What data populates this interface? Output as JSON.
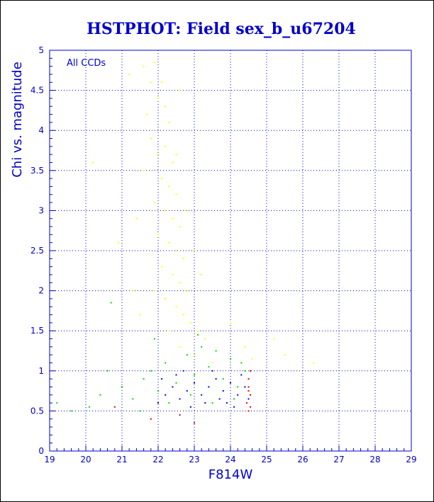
{
  "chart_data": {
    "type": "scatter",
    "title": "HSTPHOT: Field sex_b_u67204",
    "xlabel": "F814W",
    "ylabel": "Chi vs. magnitude",
    "annotation": "All CCDs",
    "xlim": [
      19,
      29
    ],
    "ylim": [
      0,
      5
    ],
    "xticks": [
      19,
      20,
      21,
      22,
      23,
      24,
      25,
      26,
      27,
      28,
      29
    ],
    "yticks": [
      0,
      0.5,
      1,
      1.5,
      2,
      2.5,
      3,
      3.5,
      4,
      4.5,
      5
    ],
    "ytick_labels": [
      "0",
      "0.5",
      "1",
      "1.5",
      "2",
      "2.5",
      "3",
      "3.5",
      "4",
      "4.5",
      "5"
    ],
    "grid": true,
    "colors": {
      "axis": "#0000cc",
      "title": "#0000cc",
      "series_yellow": "#ffff00",
      "series_green": "#00dd00",
      "series_blue": "#0000ff",
      "series_red": "#dd0000"
    },
    "series": [
      {
        "color": "#ffff00",
        "points": [
          [
            21.6,
            4.8
          ],
          [
            21.8,
            4.6
          ],
          [
            21.9,
            4.85
          ],
          [
            22.0,
            4.4
          ],
          [
            22.2,
            4.3
          ],
          [
            22.3,
            4.1
          ],
          [
            21.7,
            4.2
          ],
          [
            22.1,
            4.6
          ],
          [
            21.8,
            3.9
          ],
          [
            22.0,
            3.7
          ],
          [
            22.2,
            3.8
          ],
          [
            22.4,
            3.6
          ],
          [
            21.6,
            3.5
          ],
          [
            22.1,
            3.4
          ],
          [
            22.3,
            3.3
          ],
          [
            22.5,
            3.2
          ],
          [
            21.9,
            3.1
          ],
          [
            22.2,
            3.0
          ],
          [
            22.4,
            2.9
          ],
          [
            22.6,
            2.8
          ],
          [
            22.0,
            2.7
          ],
          [
            22.3,
            2.6
          ],
          [
            22.5,
            2.5
          ],
          [
            22.7,
            2.4
          ],
          [
            22.1,
            2.3
          ],
          [
            22.4,
            2.2
          ],
          [
            22.6,
            2.1
          ],
          [
            22.8,
            2.0
          ],
          [
            22.2,
            1.9
          ],
          [
            22.5,
            1.8
          ],
          [
            22.7,
            1.7
          ],
          [
            22.9,
            1.6
          ],
          [
            23.1,
            1.5
          ],
          [
            23.3,
            1.4
          ],
          [
            22.3,
            1.5
          ],
          [
            22.6,
            1.3
          ],
          [
            23.0,
            1.2
          ],
          [
            23.5,
            1.1
          ],
          [
            24.6,
            1.15
          ],
          [
            25.2,
            1.4
          ],
          [
            25.5,
            1.2
          ],
          [
            26.3,
            1.1
          ],
          [
            20.2,
            3.6
          ],
          [
            20.9,
            2.6
          ],
          [
            21.3,
            2.0
          ],
          [
            21.5,
            1.7
          ],
          [
            24.0,
            1.6
          ],
          [
            24.4,
            1.3
          ],
          [
            22.5,
            3.7
          ],
          [
            22.8,
            3.0
          ],
          [
            23.0,
            2.5
          ],
          [
            23.2,
            2.2
          ],
          [
            21.4,
            2.9
          ],
          [
            21.2,
            4.7
          ],
          [
            22.6,
            4.5
          ],
          [
            21.9,
            2.0
          ]
        ]
      },
      {
        "color": "#00dd00",
        "points": [
          [
            19.2,
            0.6
          ],
          [
            19.6,
            0.5
          ],
          [
            20.1,
            0.55
          ],
          [
            20.4,
            0.7
          ],
          [
            20.7,
            1.85
          ],
          [
            21.0,
            0.8
          ],
          [
            21.3,
            0.65
          ],
          [
            21.6,
            0.9
          ],
          [
            21.8,
            1.0
          ],
          [
            22.0,
            0.75
          ],
          [
            22.2,
            1.1
          ],
          [
            22.5,
            0.85
          ],
          [
            22.8,
            1.2
          ],
          [
            23.0,
            0.95
          ],
          [
            23.2,
            1.3
          ],
          [
            23.4,
            1.05
          ],
          [
            23.6,
            1.25
          ],
          [
            23.8,
            0.9
          ],
          [
            24.0,
            1.15
          ],
          [
            24.2,
            0.8
          ],
          [
            24.4,
            1.0
          ],
          [
            22.3,
            0.6
          ],
          [
            22.9,
            0.7
          ],
          [
            23.5,
            0.6
          ],
          [
            24.1,
            0.65
          ],
          [
            21.5,
            0.5
          ],
          [
            20.6,
            1.0
          ],
          [
            21.9,
            1.4
          ],
          [
            23.1,
            1.45
          ],
          [
            24.3,
            1.1
          ]
        ]
      },
      {
        "color": "#0000ff",
        "points": [
          [
            22.0,
            0.6
          ],
          [
            22.2,
            0.7
          ],
          [
            22.4,
            0.8
          ],
          [
            22.6,
            0.65
          ],
          [
            22.8,
            0.75
          ],
          [
            23.0,
            0.85
          ],
          [
            23.2,
            0.7
          ],
          [
            23.4,
            0.8
          ],
          [
            23.6,
            0.9
          ],
          [
            23.8,
            0.75
          ],
          [
            24.0,
            0.85
          ],
          [
            24.2,
            0.7
          ],
          [
            24.4,
            0.8
          ],
          [
            22.1,
            0.9
          ],
          [
            22.5,
            0.95
          ],
          [
            22.9,
            0.55
          ],
          [
            23.3,
            0.6
          ],
          [
            23.7,
            0.65
          ],
          [
            24.1,
            0.55
          ],
          [
            24.3,
            0.95
          ],
          [
            22.7,
            1.0
          ],
          [
            23.5,
            1.0
          ],
          [
            23.9,
            0.6
          ],
          [
            24.5,
            0.65
          ]
        ]
      },
      {
        "color": "#dd0000",
        "points": [
          [
            24.5,
            0.5
          ],
          [
            24.55,
            0.7
          ],
          [
            24.5,
            0.9
          ],
          [
            24.55,
            1.0
          ],
          [
            24.45,
            0.6
          ],
          [
            24.5,
            0.8
          ],
          [
            21.8,
            0.4
          ],
          [
            23.0,
            0.35
          ],
          [
            20.8,
            0.55
          ],
          [
            22.6,
            0.45
          ],
          [
            24.55,
            0.55
          ],
          [
            24.5,
            0.75
          ]
        ]
      }
    ]
  }
}
